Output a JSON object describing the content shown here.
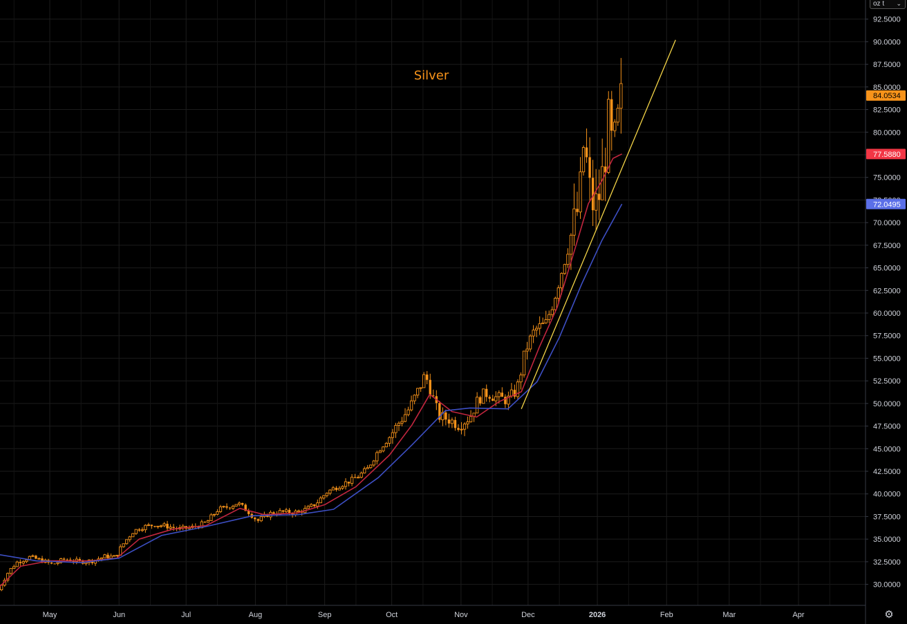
{
  "chart_data": {
    "type": "candlestick",
    "title": "Silver",
    "price_axis": {
      "unit_label": "oz t",
      "ticks": [
        "92.5000",
        "90.0000",
        "87.5000",
        "85.0000",
        "82.5000",
        "80.0000",
        "77.5000",
        "75.0000",
        "72.5000",
        "70.0000",
        "67.5000",
        "65.0000",
        "62.5000",
        "60.0000",
        "57.5000",
        "55.0000",
        "52.5000",
        "50.0000",
        "47.5000",
        "45.0000",
        "42.5000",
        "40.0000",
        "37.5000",
        "35.0000",
        "32.5000",
        "30.0000"
      ],
      "ylim": [
        28.0,
        94.5
      ]
    },
    "time_axis": {
      "labels": [
        {
          "text": "May",
          "bold": false
        },
        {
          "text": "Jun",
          "bold": false
        },
        {
          "text": "Jul",
          "bold": false
        },
        {
          "text": "Aug",
          "bold": false
        },
        {
          "text": "Sep",
          "bold": false
        },
        {
          "text": "Oct",
          "bold": false
        },
        {
          "text": "Nov",
          "bold": false
        },
        {
          "text": "Dec",
          "bold": false
        },
        {
          "text": "2026",
          "bold": true
        },
        {
          "text": "Feb",
          "bold": false
        },
        {
          "text": "Mar",
          "bold": false
        },
        {
          "text": "Apr",
          "bold": false
        }
      ]
    },
    "close_path": [
      [
        "2025-04-08",
        29.4
      ],
      [
        "2025-04-12",
        31.2
      ],
      [
        "2025-04-16",
        32.4
      ],
      [
        "2025-04-22",
        33.0
      ],
      [
        "2025-04-28",
        32.6
      ],
      [
        "2025-05-02",
        32.2
      ],
      [
        "2025-05-08",
        32.8
      ],
      [
        "2025-05-14",
        32.5
      ],
      [
        "2025-05-20",
        32.6
      ],
      [
        "2025-05-26",
        33.1
      ],
      [
        "2025-05-30",
        33.0
      ],
      [
        "2025-06-03",
        34.5
      ],
      [
        "2025-06-07",
        35.8
      ],
      [
        "2025-06-11",
        36.3
      ],
      [
        "2025-06-17",
        36.6
      ],
      [
        "2025-06-23",
        36.4
      ],
      [
        "2025-06-28",
        36.1
      ],
      [
        "2025-07-04",
        36.3
      ],
      [
        "2025-07-10",
        36.8
      ],
      [
        "2025-07-15",
        38.2
      ],
      [
        "2025-07-20",
        38.6
      ],
      [
        "2025-07-24",
        39.0
      ],
      [
        "2025-07-29",
        38.0
      ],
      [
        "2025-08-02",
        37.0
      ],
      [
        "2025-08-07",
        37.8
      ],
      [
        "2025-08-12",
        38.0
      ],
      [
        "2025-08-18",
        37.9
      ],
      [
        "2025-08-24",
        38.3
      ],
      [
        "2025-08-28",
        38.9
      ],
      [
        "2025-09-02",
        40.2
      ],
      [
        "2025-09-08",
        41.0
      ],
      [
        "2025-09-14",
        41.6
      ],
      [
        "2025-09-20",
        42.7
      ],
      [
        "2025-09-25",
        44.8
      ],
      [
        "2025-09-30",
        46.3
      ],
      [
        "2025-10-04",
        47.8
      ],
      [
        "2025-10-09",
        49.5
      ],
      [
        "2025-10-13",
        51.5
      ],
      [
        "2025-10-16",
        53.2
      ],
      [
        "2025-10-19",
        51.0
      ],
      [
        "2025-10-22",
        48.6
      ],
      [
        "2025-10-27",
        48.2
      ],
      [
        "2025-10-31",
        47.6
      ],
      [
        "2025-11-05",
        48.5
      ],
      [
        "2025-11-09",
        50.6
      ],
      [
        "2025-11-13",
        51.2
      ],
      [
        "2025-11-17",
        50.6
      ],
      [
        "2025-11-22",
        50.4
      ],
      [
        "2025-11-26",
        51.5
      ],
      [
        "2025-11-30",
        56.0
      ],
      [
        "2025-12-04",
        58.1
      ],
      [
        "2025-12-09",
        58.8
      ],
      [
        "2025-12-13",
        61.9
      ],
      [
        "2025-12-17",
        65.6
      ],
      [
        "2025-12-21",
        69.3
      ],
      [
        "2025-12-24",
        72.1
      ],
      [
        "2025-12-26",
        79.1
      ],
      [
        "2025-12-29",
        72.6
      ],
      [
        "2025-12-31",
        71.6
      ],
      [
        "2026-01-02",
        73.2
      ],
      [
        "2026-01-04",
        76.4
      ],
      [
        "2026-01-06",
        80.9
      ],
      [
        "2026-01-08",
        77.6
      ],
      [
        "2026-01-10",
        80.6
      ],
      [
        "2026-01-12",
        84.05
      ]
    ],
    "series": [
      {
        "name": "",
        "color": "#c2263f",
        "points": [
          [
            "2025-04-08",
            29.6
          ],
          [
            "2025-04-18",
            32.0
          ],
          [
            "2025-05-01",
            32.6
          ],
          [
            "2025-05-20",
            32.6
          ],
          [
            "2025-05-31",
            32.9
          ],
          [
            "2025-06-10",
            35.0
          ],
          [
            "2025-06-25",
            36.1
          ],
          [
            "2025-07-10",
            36.5
          ],
          [
            "2025-07-25",
            38.4
          ],
          [
            "2025-08-05",
            37.7
          ],
          [
            "2025-08-20",
            37.9
          ],
          [
            "2025-09-01",
            38.8
          ],
          [
            "2025-09-15",
            40.8
          ],
          [
            "2025-09-30",
            44.3
          ],
          [
            "2025-10-10",
            47.6
          ],
          [
            "2025-10-18",
            51.0
          ],
          [
            "2025-10-28",
            49.1
          ],
          [
            "2025-11-08",
            48.5
          ],
          [
            "2025-11-18",
            50.2
          ],
          [
            "2025-11-28",
            51.3
          ],
          [
            "2025-12-06",
            56.2
          ],
          [
            "2025-12-14",
            60.6
          ],
          [
            "2025-12-22",
            67.1
          ],
          [
            "2025-12-28",
            72.1
          ],
          [
            "2026-01-03",
            74.6
          ],
          [
            "2026-01-08",
            77.1
          ],
          [
            "2026-01-12",
            77.588
          ]
        ]
      },
      {
        "name": "",
        "color": "#3d4fc4",
        "points": [
          [
            "2025-04-08",
            33.3
          ],
          [
            "2025-04-25",
            32.6
          ],
          [
            "2025-05-15",
            32.4
          ],
          [
            "2025-06-01",
            32.9
          ],
          [
            "2025-06-20",
            35.4
          ],
          [
            "2025-07-10",
            36.4
          ],
          [
            "2025-07-31",
            37.6
          ],
          [
            "2025-08-20",
            37.7
          ],
          [
            "2025-09-05",
            38.3
          ],
          [
            "2025-09-25",
            41.8
          ],
          [
            "2025-10-10",
            45.4
          ],
          [
            "2025-10-25",
            49.2
          ],
          [
            "2025-11-05",
            49.5
          ],
          [
            "2025-11-22",
            49.4
          ],
          [
            "2025-12-05",
            52.4
          ],
          [
            "2025-12-15",
            57.3
          ],
          [
            "2025-12-25",
            63.2
          ],
          [
            "2026-01-03",
            68.0
          ],
          [
            "2026-01-12",
            72.0495
          ]
        ]
      }
    ],
    "trendline": {
      "color": "#f5d547",
      "from": [
        "2025-11-28",
        49.4
      ],
      "to": [
        "2026-02-05",
        90.2
      ]
    },
    "last_values": [
      {
        "value": "84.0534",
        "bg": "#f7931a",
        "fg": "#000000"
      },
      {
        "value": "77.5880",
        "bg": "#f23645",
        "fg": "#ffffff"
      },
      {
        "value": "72.0495",
        "bg": "#5b6fe8",
        "fg": "#ffffff"
      }
    ],
    "colors": {
      "candle": "#f7931a",
      "grid": "#1c1c1c",
      "background": "#000000"
    }
  },
  "controls": {
    "settings_icon": "gear-icon"
  }
}
